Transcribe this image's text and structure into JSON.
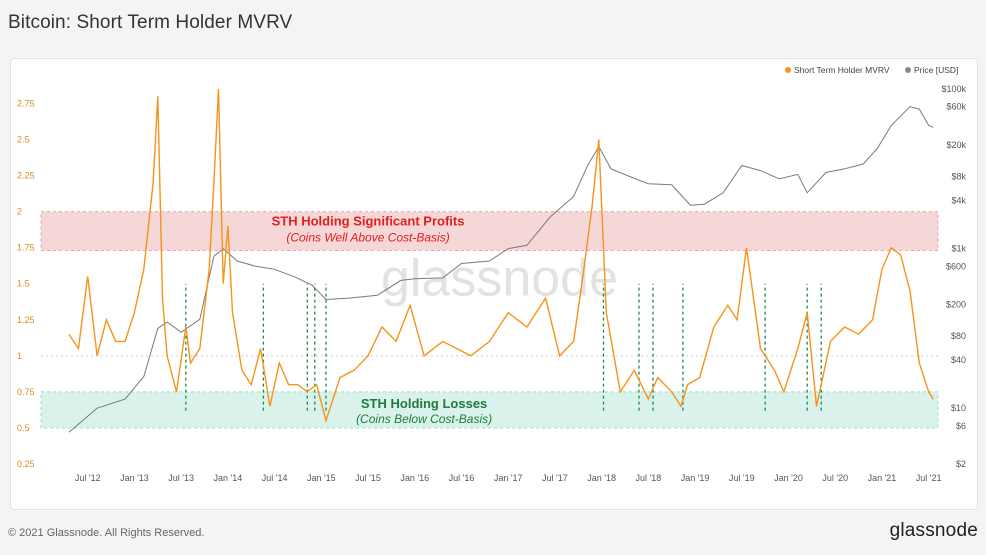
{
  "title": "Bitcoin: Short Term Holder MVRV",
  "footer": {
    "copyright": "© 2021 Glassnode. All Rights Reserved.",
    "logo": "glassnode",
    "watermark": "glassnode"
  },
  "chart_data": {
    "type": "line",
    "legend": [
      {
        "name": "Short Term Holder MVRV",
        "color": "#f7931a"
      },
      {
        "name": "Price [USD]",
        "color": "#888888"
      }
    ],
    "legend_position": "top-right",
    "x_ticks": [
      "Jul '12",
      "Jan '13",
      "Jul '13",
      "Jan '14",
      "Jul '14",
      "Jan '15",
      "Jul '15",
      "Jan '16",
      "Jul '16",
      "Jan '17",
      "Jul '17",
      "Jan '18",
      "Jul '18",
      "Jan '19",
      "Jul '19",
      "Jan '20",
      "Jul '20",
      "Jan '21",
      "Jul '21"
    ],
    "y_left": {
      "ticks": [
        0.25,
        0.5,
        0.75,
        1,
        1.25,
        1.5,
        1.75,
        2,
        2.25,
        2.5,
        2.75
      ],
      "tick_labels": [
        "0.25",
        "0.5",
        "0.75",
        "1",
        "1.25",
        "1.5",
        "1.75",
        "2",
        "2.25",
        "2.5",
        "2.75"
      ],
      "range": [
        0.25,
        2.85
      ]
    },
    "y_right": {
      "scale": "log",
      "tick_labels": [
        "$100k",
        "$60k",
        "$20k",
        "$8k",
        "$4k",
        "$1k",
        "$600",
        "$200",
        "$80",
        "$40",
        "$10",
        "$6",
        "$2"
      ],
      "ticks": [
        100000,
        60000,
        20000,
        8000,
        4000,
        1000,
        600,
        200,
        80,
        40,
        10,
        6,
        2
      ],
      "range": [
        2,
        100000
      ]
    },
    "grid": "horizontal at 1.0 (dashed)",
    "annotations": {
      "profit_zone": {
        "label": "STH Holding Significant Profits",
        "sublabel": "(Coins Well Above Cost-Basis)",
        "range": [
          1.73,
          2.0
        ],
        "fill": "#f6d7d7",
        "text_color": "#e0201d"
      },
      "loss_zone": {
        "label": "STH Holding Losses",
        "sublabel": "(Coins Below Cost-Basis)",
        "range": [
          0.5,
          0.75
        ],
        "fill": "#d9f3ec",
        "text_color": "#1e7b3a"
      },
      "bottom_markers": [
        "Jul '13",
        "May '14",
        "Nov '14",
        "Dec '14",
        "Jan '15",
        "Jan '18",
        "Jun '18",
        "Jul '18",
        "Nov '18",
        "Sep '19",
        "Mar '20",
        "May '21"
      ]
    },
    "series": [
      {
        "name": "Short Term Holder MVRV",
        "x": [
          2012.3,
          2012.4,
          2012.5,
          2012.6,
          2012.7,
          2012.8,
          2012.9,
          2013.0,
          2013.1,
          2013.2,
          2013.25,
          2013.3,
          2013.35,
          2013.45,
          2013.55,
          2013.6,
          2013.7,
          2013.8,
          2013.85,
          2013.9,
          2013.95,
          2014.0,
          2014.05,
          2014.15,
          2014.25,
          2014.35,
          2014.45,
          2014.55,
          2014.65,
          2014.75,
          2014.85,
          2014.95,
          2015.05,
          2015.2,
          2015.35,
          2015.5,
          2015.65,
          2015.8,
          2015.95,
          2016.1,
          2016.3,
          2016.45,
          2016.6,
          2016.8,
          2017.0,
          2017.2,
          2017.4,
          2017.55,
          2017.7,
          2017.8,
          2017.9,
          2017.97,
          2018.05,
          2018.2,
          2018.35,
          2018.5,
          2018.6,
          2018.75,
          2018.85,
          2018.92,
          2019.05,
          2019.2,
          2019.35,
          2019.45,
          2019.55,
          2019.7,
          2019.85,
          2019.95,
          2020.1,
          2020.2,
          2020.3,
          2020.45,
          2020.6,
          2020.75,
          2020.9,
          2021.0,
          2021.1,
          2021.2,
          2021.3,
          2021.4,
          2021.5,
          2021.55
        ],
        "values": [
          1.15,
          1.05,
          1.55,
          1.0,
          1.25,
          1.1,
          1.1,
          1.3,
          1.6,
          2.2,
          2.8,
          1.4,
          1.0,
          0.75,
          1.2,
          0.95,
          1.05,
          1.6,
          2.2,
          2.85,
          1.5,
          1.9,
          1.3,
          0.9,
          0.8,
          1.05,
          0.65,
          0.95,
          0.8,
          0.8,
          0.75,
          0.8,
          0.55,
          0.85,
          0.9,
          1.0,
          1.2,
          1.1,
          1.35,
          1.0,
          1.1,
          1.05,
          1.0,
          1.1,
          1.3,
          1.2,
          1.4,
          1.0,
          1.1,
          1.55,
          2.05,
          2.5,
          1.3,
          0.75,
          0.9,
          0.7,
          0.85,
          0.75,
          0.65,
          0.8,
          0.85,
          1.2,
          1.35,
          1.25,
          1.75,
          1.05,
          0.9,
          0.75,
          1.05,
          1.3,
          0.65,
          1.1,
          1.2,
          1.15,
          1.25,
          1.6,
          1.75,
          1.7,
          1.45,
          0.95,
          0.75,
          0.7
        ]
      },
      {
        "name": "Price [USD]",
        "x": [
          2012.3,
          2012.6,
          2012.9,
          2013.1,
          2013.25,
          2013.35,
          2013.5,
          2013.7,
          2013.85,
          2013.95,
          2014.1,
          2014.3,
          2014.5,
          2014.7,
          2014.9,
          2015.05,
          2015.3,
          2015.6,
          2015.85,
          2016.0,
          2016.3,
          2016.5,
          2016.8,
          2017.0,
          2017.2,
          2017.45,
          2017.7,
          2017.85,
          2017.97,
          2018.1,
          2018.3,
          2018.5,
          2018.75,
          2018.95,
          2019.1,
          2019.3,
          2019.5,
          2019.7,
          2019.9,
          2020.1,
          2020.2,
          2020.4,
          2020.6,
          2020.8,
          2020.95,
          2021.1,
          2021.3,
          2021.4,
          2021.5,
          2021.55
        ],
        "values": [
          5,
          10,
          13,
          25,
          100,
          120,
          90,
          130,
          800,
          1000,
          700,
          600,
          550,
          450,
          350,
          230,
          240,
          260,
          400,
          420,
          430,
          650,
          700,
          1000,
          1100,
          2500,
          4500,
          11000,
          19000,
          10000,
          8000,
          6500,
          6300,
          3500,
          3600,
          5000,
          11000,
          9500,
          7500,
          8500,
          5000,
          9000,
          10000,
          11500,
          18000,
          35000,
          60000,
          56000,
          35000,
          33000
        ]
      }
    ]
  }
}
